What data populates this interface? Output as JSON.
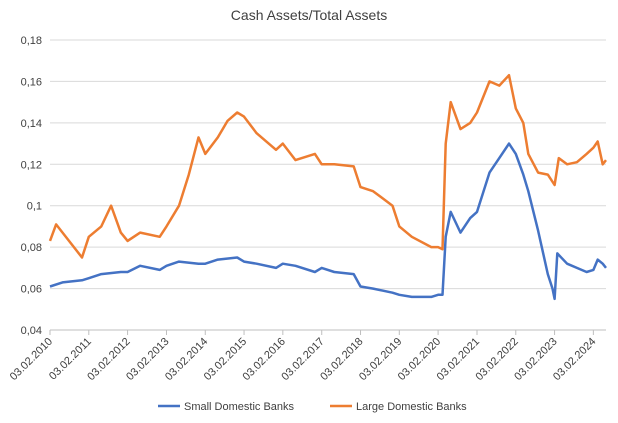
{
  "chart_data": {
    "type": "line",
    "title": "Cash Assets/Total Assets",
    "xlabel": "",
    "ylabel": "",
    "ylim": [
      0.04,
      0.18
    ],
    "yticks": [
      "0,04",
      "0,06",
      "0,08",
      "0,1",
      "0,12",
      "0,14",
      "0,16",
      "0,18"
    ],
    "ytick_values": [
      0.04,
      0.06,
      0.08,
      0.1,
      0.12,
      0.14,
      0.16,
      0.18
    ],
    "xlim": [
      "2010-02-03",
      "2024-06-01"
    ],
    "xticks": [
      "03.02.2010",
      "03.02.2011",
      "03.02.2012",
      "03.02.2013",
      "03.02.2014",
      "03.02.2015",
      "03.02.2016",
      "03.02.2017",
      "03.02.2018",
      "03.02.2019",
      "03.02.2020",
      "03.02.2021",
      "03.02.2022",
      "03.02.2023",
      "03.02.2024"
    ],
    "grid": "horizontal",
    "legend_position": "bottom",
    "series": [
      {
        "name": "Small Domestic Banks",
        "color": "#4472C4",
        "x": [
          "2010-02-03",
          "2010-06-01",
          "2010-12-01",
          "2011-02-03",
          "2011-06-01",
          "2011-12-01",
          "2012-02-03",
          "2012-06-01",
          "2012-12-01",
          "2013-02-03",
          "2013-06-01",
          "2013-12-01",
          "2014-02-03",
          "2014-06-01",
          "2014-12-01",
          "2015-02-03",
          "2015-06-01",
          "2015-12-01",
          "2016-02-03",
          "2016-06-01",
          "2016-12-01",
          "2017-02-03",
          "2017-06-01",
          "2017-12-01",
          "2018-02-03",
          "2018-06-01",
          "2018-12-01",
          "2019-02-03",
          "2019-06-01",
          "2019-12-01",
          "2020-02-03",
          "2020-03-15",
          "2020-04-15",
          "2020-06-01",
          "2020-09-01",
          "2020-12-01",
          "2021-02-03",
          "2021-06-01",
          "2021-09-01",
          "2021-12-01",
          "2022-02-03",
          "2022-04-15",
          "2022-06-01",
          "2022-09-01",
          "2022-12-01",
          "2023-01-15",
          "2023-02-03",
          "2023-03-01",
          "2023-06-01",
          "2023-09-01",
          "2023-12-01",
          "2024-02-03",
          "2024-03-15",
          "2024-05-01",
          "2024-06-01"
        ],
        "values": [
          0.061,
          0.063,
          0.064,
          0.065,
          0.067,
          0.068,
          0.068,
          0.071,
          0.069,
          0.071,
          0.073,
          0.072,
          0.072,
          0.074,
          0.075,
          0.073,
          0.072,
          0.07,
          0.072,
          0.071,
          0.068,
          0.07,
          0.068,
          0.067,
          0.061,
          0.06,
          0.058,
          0.057,
          0.056,
          0.056,
          0.057,
          0.057,
          0.085,
          0.097,
          0.087,
          0.094,
          0.097,
          0.116,
          0.123,
          0.13,
          0.125,
          0.115,
          0.107,
          0.088,
          0.067,
          0.06,
          0.055,
          0.077,
          0.072,
          0.07,
          0.068,
          0.069,
          0.074,
          0.072,
          0.07
        ]
      },
      {
        "name": "Large Domestic Banks",
        "color": "#ED7D31",
        "x": [
          "2010-02-03",
          "2010-04-01",
          "2010-08-01",
          "2010-12-01",
          "2011-02-03",
          "2011-06-01",
          "2011-09-01",
          "2011-12-01",
          "2012-02-03",
          "2012-06-01",
          "2012-12-01",
          "2013-02-03",
          "2013-06-01",
          "2013-09-01",
          "2013-12-01",
          "2014-02-03",
          "2014-06-01",
          "2014-09-01",
          "2014-12-01",
          "2015-02-03",
          "2015-06-01",
          "2015-12-01",
          "2016-02-03",
          "2016-06-01",
          "2016-12-01",
          "2017-02-03",
          "2017-06-01",
          "2017-12-01",
          "2018-02-03",
          "2018-06-01",
          "2018-12-01",
          "2019-02-03",
          "2019-06-01",
          "2019-12-01",
          "2020-02-03",
          "2020-03-15",
          "2020-04-15",
          "2020-06-01",
          "2020-09-01",
          "2020-12-01",
          "2021-02-03",
          "2021-06-01",
          "2021-09-01",
          "2021-12-01",
          "2022-02-03",
          "2022-04-15",
          "2022-06-01",
          "2022-09-01",
          "2022-12-01",
          "2023-02-03",
          "2023-03-15",
          "2023-06-01",
          "2023-09-01",
          "2023-12-01",
          "2024-02-03",
          "2024-03-15",
          "2024-05-01",
          "2024-06-01"
        ],
        "values": [
          0.083,
          0.091,
          0.083,
          0.075,
          0.085,
          0.09,
          0.1,
          0.087,
          0.083,
          0.087,
          0.085,
          0.09,
          0.1,
          0.115,
          0.133,
          0.125,
          0.133,
          0.141,
          0.145,
          0.143,
          0.135,
          0.127,
          0.13,
          0.122,
          0.125,
          0.12,
          0.12,
          0.119,
          0.109,
          0.107,
          0.1,
          0.09,
          0.085,
          0.08,
          0.08,
          0.079,
          0.13,
          0.15,
          0.137,
          0.14,
          0.145,
          0.16,
          0.158,
          0.163,
          0.147,
          0.14,
          0.125,
          0.116,
          0.115,
          0.11,
          0.123,
          0.12,
          0.121,
          0.125,
          0.128,
          0.131,
          0.12,
          0.122
        ]
      }
    ]
  }
}
